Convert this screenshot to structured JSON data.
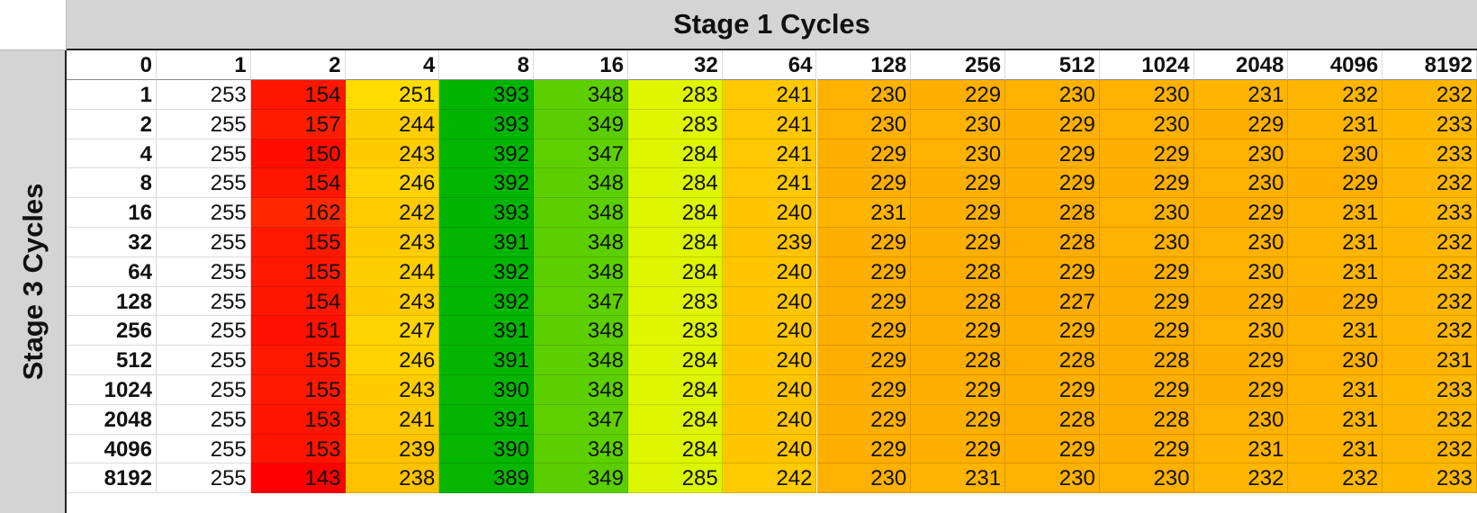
{
  "title": "Stage 1 Cycles",
  "row_title": "Stage 3 Cycles",
  "chart_data": {
    "type": "heatmap",
    "title": "Stage 1 Cycles",
    "xlabel": "Stage 1 Cycles",
    "ylabel": "Stage 3 Cycles",
    "corner_label": "0",
    "columns": [
      "1",
      "2",
      "4",
      "8",
      "16",
      "32",
      "64",
      "128",
      "256",
      "512",
      "1024",
      "2048",
      "4096",
      "8192"
    ],
    "rows": [
      "1",
      "2",
      "4",
      "8",
      "16",
      "32",
      "64",
      "128",
      "256",
      "512",
      "1024",
      "2048",
      "4096",
      "8192"
    ],
    "values": [
      [
        253,
        154,
        251,
        393,
        348,
        283,
        241,
        230,
        229,
        230,
        230,
        231,
        232,
        232
      ],
      [
        255,
        157,
        244,
        393,
        349,
        283,
        241,
        230,
        230,
        229,
        230,
        229,
        231,
        233
      ],
      [
        255,
        150,
        243,
        392,
        347,
        284,
        241,
        229,
        230,
        229,
        229,
        230,
        230,
        233
      ],
      [
        255,
        154,
        246,
        392,
        348,
        284,
        241,
        229,
        229,
        229,
        229,
        230,
        229,
        232
      ],
      [
        255,
        162,
        242,
        393,
        348,
        284,
        240,
        231,
        229,
        228,
        230,
        229,
        231,
        233
      ],
      [
        255,
        155,
        243,
        391,
        348,
        284,
        239,
        229,
        229,
        228,
        230,
        230,
        231,
        232
      ],
      [
        255,
        155,
        244,
        392,
        348,
        284,
        240,
        229,
        228,
        229,
        229,
        230,
        231,
        232
      ],
      [
        255,
        154,
        243,
        392,
        347,
        283,
        240,
        229,
        228,
        227,
        229,
        229,
        229,
        232
      ],
      [
        255,
        151,
        247,
        391,
        348,
        283,
        240,
        229,
        229,
        229,
        229,
        230,
        231,
        232
      ],
      [
        255,
        155,
        246,
        391,
        348,
        284,
        240,
        229,
        228,
        228,
        228,
        229,
        230,
        231
      ],
      [
        255,
        155,
        243,
        390,
        348,
        284,
        240,
        229,
        229,
        229,
        229,
        229,
        231,
        233
      ],
      [
        255,
        153,
        241,
        391,
        347,
        284,
        240,
        229,
        229,
        228,
        228,
        230,
        231,
        232
      ],
      [
        255,
        153,
        239,
        390,
        348,
        284,
        240,
        229,
        229,
        229,
        229,
        231,
        231,
        232
      ],
      [
        255,
        143,
        238,
        389,
        349,
        285,
        242,
        230,
        231,
        230,
        230,
        232,
        232,
        233
      ]
    ],
    "color_scale": {
      "low": "#ff0000",
      "mid": "#ffff00",
      "high": "#00b400"
    },
    "first_data_column_color": "#ffffff",
    "grid": true
  }
}
